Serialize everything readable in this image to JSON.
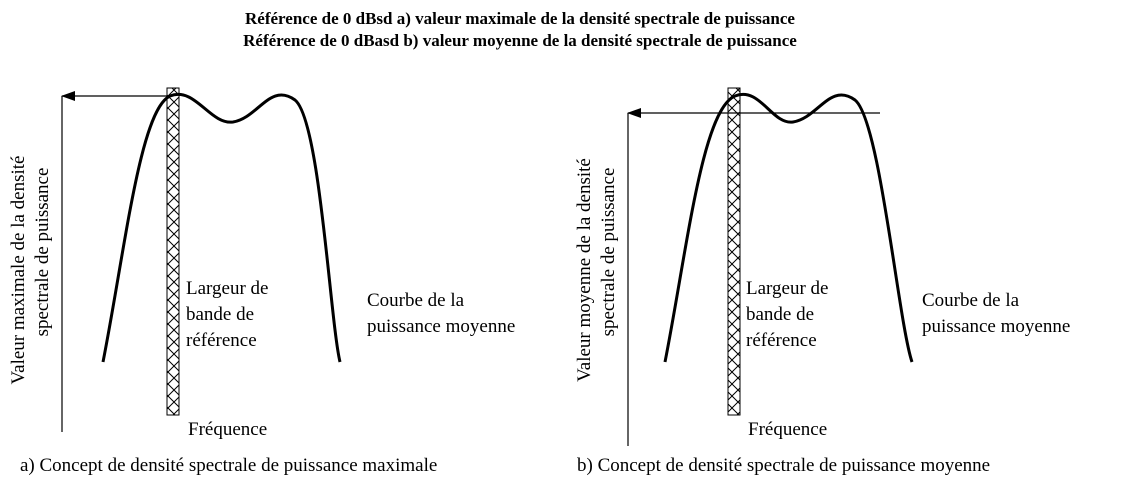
{
  "title": [
    "Référence de 0 dBsd a) valeur maximale de la densité spectrale de puissance",
    "Référence de 0 dBasd b) valeur moyenne de la densité spectrale de puissance"
  ],
  "panels": [
    {
      "y_label": [
        "Valeur maximale de la densité",
        "spectrale de puissance"
      ],
      "bandwidth_label": [
        "Largeur de",
        "bande de",
        "référence"
      ],
      "curve_label": [
        "Courbe de la",
        "puissance moyenne"
      ],
      "x_label": "Fréquence",
      "caption": "a) Concept de densité spectrale de puissance maximale"
    },
    {
      "y_label": [
        "Valeur moyenne de la densité",
        "spectrale de puissance"
      ],
      "bandwidth_label": [
        "Largeur de",
        "bande de",
        "référence"
      ],
      "curve_label": [
        "Courbe de la",
        "puissance moyenne"
      ],
      "x_label": "Fréquence",
      "caption": "b) Concept de densité spectrale de puissance moyenne"
    }
  ]
}
